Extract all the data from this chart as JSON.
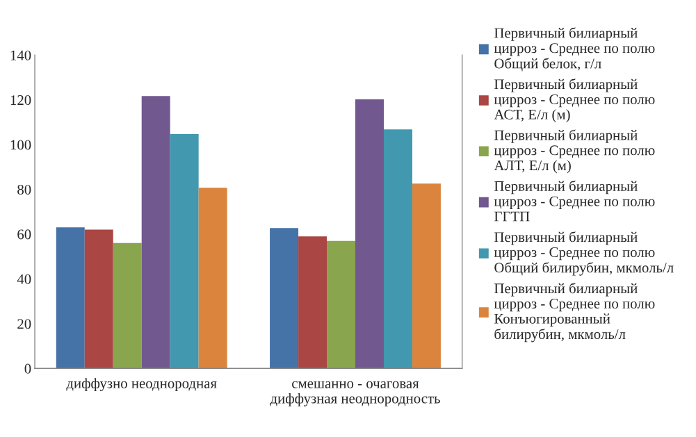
{
  "chart_data": {
    "type": "bar",
    "categories": [
      "диффузно неоднородная",
      "смешанно - очаговая диффузная неоднородность"
    ],
    "series": [
      {
        "name": "Первичный билиарный цирроз - Среднее по полю Общий белок, г/л",
        "color": "#4572a7",
        "values": [
          63,
          62.7
        ]
      },
      {
        "name": "Первичный билиарный цирроз - Среднее по полю АСТ, Е/л (м)",
        "color": "#aa4643",
        "values": [
          62,
          59
        ]
      },
      {
        "name": "Первичный билиарный цирроз - Среднее по полю АЛТ, Е/л (м)",
        "color": "#89a54e",
        "values": [
          56,
          57
        ]
      },
      {
        "name": "Первичный билиарный цирроз - Среднее по полю ГГТП",
        "color": "#71588f",
        "values": [
          121.7,
          120.2
        ]
      },
      {
        "name": "Первичный билиарный цирроз - Среднее по полю Общий билирубин, мкмоль/л",
        "color": "#4198af",
        "values": [
          104.7,
          106.8
        ]
      },
      {
        "name": "Первичный билиарный цирроз - Среднее по полю Конъюгированный билирубин, мкмоль/л",
        "color": "#db843d",
        "values": [
          80.7,
          82.6
        ]
      }
    ],
    "ylim": [
      0,
      140
    ],
    "yticks": [
      0,
      20,
      40,
      60,
      80,
      100,
      120,
      140
    ],
    "grid": false,
    "legend": "right"
  }
}
